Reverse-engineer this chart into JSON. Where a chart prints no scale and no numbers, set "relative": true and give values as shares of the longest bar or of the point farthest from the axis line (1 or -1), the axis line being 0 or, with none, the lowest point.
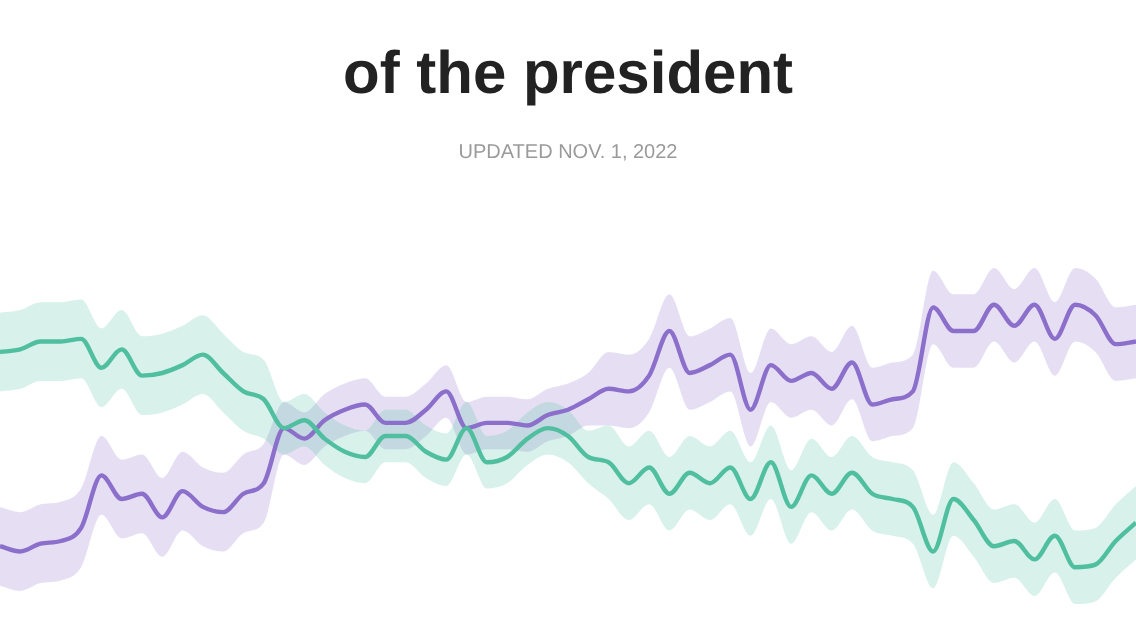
{
  "chart_data": {
    "type": "line",
    "relative": true,
    "title": "of the president",
    "subtitle": "UPDATED NOV. 1, 2022",
    "categories": [
      null,
      null,
      null,
      null,
      null,
      null,
      null,
      null,
      null,
      null,
      null,
      null,
      null,
      null,
      null,
      null,
      null,
      null,
      null,
      null,
      null,
      null,
      null,
      null,
      null,
      null,
      null,
      null,
      null,
      null,
      null,
      null,
      null,
      null,
      null,
      null,
      null,
      null,
      null,
      null,
      null,
      null,
      null,
      null,
      null,
      null,
      null,
      null,
      null,
      null,
      null,
      null,
      null,
      null,
      null,
      null,
      null
    ],
    "series": [
      {
        "color": "#4fbf9f",
        "values": [
          0.82,
          0.83,
          0.86,
          0.86,
          0.87,
          0.76,
          0.83,
          0.73,
          0.74,
          0.77,
          0.81,
          0.74,
          0.67,
          0.64,
          0.53,
          0.56,
          0.49,
          0.44,
          0.42,
          0.5,
          0.5,
          0.44,
          0.41,
          0.53,
          0.4,
          0.42,
          0.49,
          0.53,
          0.5,
          0.42,
          0.4,
          0.32,
          0.38,
          0.28,
          0.36,
          0.32,
          0.38,
          0.26,
          0.4,
          0.23,
          0.35,
          0.28,
          0.36,
          0.28,
          0.26,
          0.23,
          0.06,
          0.26,
          0.18,
          0.08,
          0.1,
          0.03,
          0.12,
          0.0,
          0.01,
          0.1,
          0.17
        ],
        "lower": [
          0.67,
          0.68,
          0.71,
          0.71,
          0.72,
          0.61,
          0.68,
          0.58,
          0.59,
          0.62,
          0.66,
          0.59,
          0.52,
          0.49,
          0.43,
          0.46,
          0.39,
          0.34,
          0.32,
          0.4,
          0.4,
          0.34,
          0.31,
          0.43,
          0.3,
          0.32,
          0.39,
          0.43,
          0.4,
          0.32,
          0.26,
          0.18,
          0.24,
          0.14,
          0.22,
          0.18,
          0.24,
          0.12,
          0.26,
          0.09,
          0.21,
          0.14,
          0.22,
          0.14,
          0.12,
          0.09,
          -0.08,
          0.12,
          0.04,
          -0.06,
          -0.04,
          -0.11,
          -0.02,
          -0.14,
          -0.13,
          -0.04,
          0.03
        ],
        "upper": [
          0.97,
          0.98,
          1.01,
          1.01,
          1.02,
          0.91,
          0.98,
          0.88,
          0.89,
          0.92,
          0.96,
          0.89,
          0.82,
          0.79,
          0.63,
          0.66,
          0.59,
          0.54,
          0.52,
          0.6,
          0.6,
          0.54,
          0.51,
          0.63,
          0.5,
          0.52,
          0.59,
          0.63,
          0.6,
          0.52,
          0.54,
          0.46,
          0.52,
          0.42,
          0.5,
          0.46,
          0.52,
          0.4,
          0.54,
          0.37,
          0.49,
          0.42,
          0.5,
          0.42,
          0.4,
          0.37,
          0.2,
          0.4,
          0.32,
          0.22,
          0.24,
          0.17,
          0.26,
          0.14,
          0.15,
          0.24,
          0.31
        ]
      },
      {
        "color": "#8b6fcb",
        "values": [
          0.08,
          0.06,
          0.09,
          0.1,
          0.15,
          0.35,
          0.26,
          0.28,
          0.19,
          0.29,
          0.23,
          0.21,
          0.28,
          0.32,
          0.53,
          0.49,
          0.56,
          0.6,
          0.62,
          0.55,
          0.55,
          0.6,
          0.67,
          0.53,
          0.55,
          0.55,
          0.54,
          0.58,
          0.6,
          0.64,
          0.68,
          0.67,
          0.73,
          0.9,
          0.74,
          0.77,
          0.81,
          0.6,
          0.77,
          0.71,
          0.74,
          0.68,
          0.78,
          0.62,
          0.64,
          0.67,
          0.99,
          0.9,
          0.9,
          1.0,
          0.92,
          1.0,
          0.87,
          1.0,
          0.96,
          0.85,
          0.86
        ],
        "lower": [
          -0.07,
          -0.09,
          -0.06,
          -0.05,
          0.0,
          0.2,
          0.11,
          0.13,
          0.04,
          0.14,
          0.08,
          0.06,
          0.13,
          0.17,
          0.43,
          0.39,
          0.46,
          0.5,
          0.52,
          0.45,
          0.45,
          0.5,
          0.57,
          0.43,
          0.45,
          0.45,
          0.44,
          0.48,
          0.5,
          0.54,
          0.54,
          0.53,
          0.59,
          0.76,
          0.6,
          0.63,
          0.67,
          0.46,
          0.63,
          0.57,
          0.6,
          0.54,
          0.64,
          0.48,
          0.5,
          0.53,
          0.85,
          0.76,
          0.76,
          0.86,
          0.78,
          0.86,
          0.73,
          0.86,
          0.82,
          0.71,
          0.72
        ],
        "upper": [
          0.23,
          0.21,
          0.24,
          0.25,
          0.3,
          0.5,
          0.41,
          0.43,
          0.34,
          0.44,
          0.38,
          0.36,
          0.43,
          0.47,
          0.63,
          0.59,
          0.66,
          0.7,
          0.72,
          0.65,
          0.65,
          0.7,
          0.77,
          0.63,
          0.65,
          0.65,
          0.64,
          0.68,
          0.7,
          0.74,
          0.82,
          0.81,
          0.87,
          1.04,
          0.88,
          0.91,
          0.95,
          0.74,
          0.91,
          0.85,
          0.88,
          0.82,
          0.92,
          0.76,
          0.78,
          0.81,
          1.13,
          1.04,
          1.04,
          1.14,
          1.06,
          1.14,
          1.01,
          1.14,
          1.1,
          0.99,
          1.0
        ]
      }
    ]
  }
}
